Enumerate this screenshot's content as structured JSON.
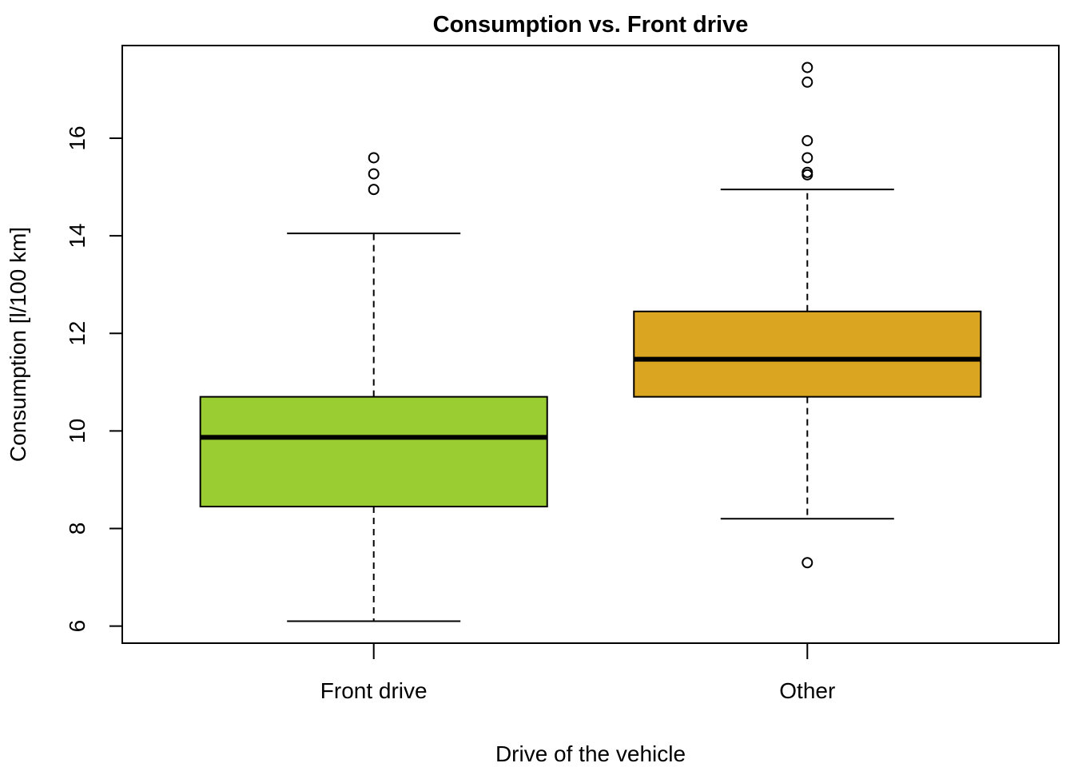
{
  "chart_data": {
    "type": "boxplot",
    "title": "Consumption vs. Front drive",
    "xlabel": "Drive of the vehicle",
    "ylabel": "Consumption [l/100 km]",
    "ylim": [
      5.65,
      17.9
    ],
    "yticks": [
      6,
      8,
      10,
      12,
      14,
      16
    ],
    "categories": [
      "Front drive",
      "Other"
    ],
    "boxes": [
      {
        "name": "Front drive",
        "color": "#9ACD32",
        "whisker_low": 6.1,
        "q1": 8.45,
        "median": 9.87,
        "q3": 10.7,
        "whisker_high": 14.05,
        "outliers": [
          14.95,
          15.27,
          15.6
        ]
      },
      {
        "name": "Other",
        "color": "#DAA520",
        "whisker_low": 8.2,
        "q1": 10.7,
        "median": 11.47,
        "q3": 12.45,
        "whisker_high": 14.95,
        "outliers": [
          7.3,
          15.25,
          15.3,
          15.6,
          15.95,
          17.15,
          17.45
        ]
      }
    ]
  }
}
